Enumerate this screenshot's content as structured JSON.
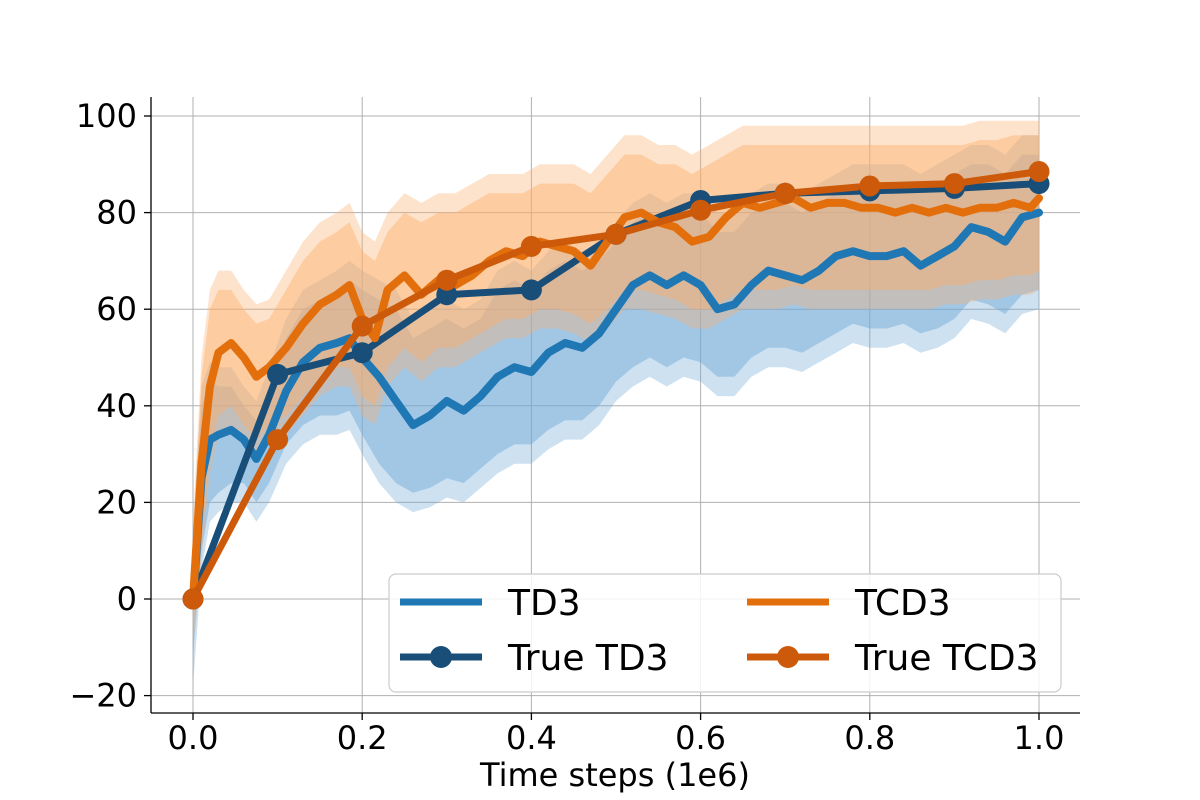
{
  "chart_data": {
    "type": "line",
    "title": "",
    "xlabel": "Time steps (1e6)",
    "ylabel": "",
    "xlim": [
      -0.05,
      1.05
    ],
    "ylim": [
      -23,
      104
    ],
    "x_ticks": [
      0.0,
      0.2,
      0.4,
      0.6,
      0.8,
      1.0
    ],
    "x_tick_labels": [
      "0.0",
      "0.2",
      "0.4",
      "0.6",
      "0.8",
      "1.0"
    ],
    "y_ticks": [
      -20,
      0,
      20,
      40,
      60,
      80,
      100
    ],
    "y_tick_labels": [
      "−20",
      "0",
      "20",
      "40",
      "60",
      "80",
      "100"
    ],
    "grid": true,
    "legend_position": "lower-right",
    "colors": {
      "td3": "#1f77b4",
      "true_td3": "#184e78",
      "tcd3": "#e36f0c",
      "true_tcd3": "#cc5a0a",
      "td3_band": "#6fa8d6",
      "tcd3_band": "#fdb06d"
    },
    "series": [
      {
        "name": "TD3",
        "style": "line",
        "x": [
          0.0,
          0.01,
          0.02,
          0.03,
          0.045,
          0.06,
          0.075,
          0.09,
          0.11,
          0.13,
          0.15,
          0.17,
          0.185,
          0.2,
          0.22,
          0.24,
          0.26,
          0.28,
          0.3,
          0.32,
          0.34,
          0.36,
          0.38,
          0.4,
          0.42,
          0.44,
          0.46,
          0.48,
          0.5,
          0.52,
          0.54,
          0.56,
          0.58,
          0.6,
          0.62,
          0.64,
          0.66,
          0.68,
          0.7,
          0.72,
          0.74,
          0.76,
          0.78,
          0.8,
          0.82,
          0.84,
          0.86,
          0.88,
          0.9,
          0.92,
          0.94,
          0.96,
          0.98,
          1.0
        ],
        "y": [
          -1,
          25,
          33,
          34,
          35,
          33,
          29,
          34,
          43,
          49,
          52,
          53,
          54,
          50,
          46,
          41,
          36,
          38,
          41,
          39,
          42,
          46,
          48,
          47,
          51,
          53,
          52,
          55,
          60,
          65,
          67,
          65,
          67,
          65,
          60,
          61,
          65,
          68,
          67,
          66,
          68,
          71,
          72,
          71,
          71,
          72,
          69,
          71,
          73,
          77,
          76,
          74,
          79,
          80
        ],
        "band_inner": [
          [
            -12,
            10
          ],
          [
            10,
            40
          ],
          [
            20,
            45
          ],
          [
            22,
            44
          ],
          [
            24,
            44
          ],
          [
            24,
            40
          ],
          [
            20,
            37
          ],
          [
            24,
            44
          ],
          [
            32,
            54
          ],
          [
            36,
            60
          ],
          [
            38,
            62
          ],
          [
            38,
            64
          ],
          [
            39,
            66
          ],
          [
            34,
            64
          ],
          [
            28,
            62
          ],
          [
            24,
            60
          ],
          [
            22,
            54
          ],
          [
            23,
            56
          ],
          [
            25,
            58
          ],
          [
            24,
            56
          ],
          [
            27,
            58
          ],
          [
            30,
            64
          ],
          [
            32,
            66
          ],
          [
            32,
            64
          ],
          [
            35,
            68
          ],
          [
            37,
            70
          ],
          [
            37,
            68
          ],
          [
            40,
            70
          ],
          [
            45,
            74
          ],
          [
            48,
            78
          ],
          [
            50,
            80
          ],
          [
            48,
            78
          ],
          [
            50,
            80
          ],
          [
            49,
            80
          ],
          [
            46,
            76
          ],
          [
            46,
            76
          ],
          [
            50,
            80
          ],
          [
            52,
            82
          ],
          [
            52,
            82
          ],
          [
            51,
            80
          ],
          [
            53,
            82
          ],
          [
            55,
            84
          ],
          [
            57,
            86
          ],
          [
            56,
            86
          ],
          [
            56,
            86
          ],
          [
            57,
            86
          ],
          [
            55,
            84
          ],
          [
            56,
            86
          ],
          [
            58,
            88
          ],
          [
            62,
            90
          ],
          [
            61,
            90
          ],
          [
            59,
            88
          ],
          [
            63,
            92
          ],
          [
            64,
            92
          ]
        ],
        "band_outer": [
          [
            -18,
            14
          ],
          [
            6,
            44
          ],
          [
            16,
            49
          ],
          [
            18,
            48
          ],
          [
            20,
            48
          ],
          [
            20,
            44
          ],
          [
            16,
            41
          ],
          [
            20,
            48
          ],
          [
            28,
            58
          ],
          [
            32,
            64
          ],
          [
            34,
            66
          ],
          [
            34,
            68
          ],
          [
            35,
            70
          ],
          [
            30,
            68
          ],
          [
            24,
            66
          ],
          [
            20,
            64
          ],
          [
            18,
            58
          ],
          [
            19,
            60
          ],
          [
            21,
            62
          ],
          [
            20,
            60
          ],
          [
            23,
            62
          ],
          [
            26,
            68
          ],
          [
            28,
            70
          ],
          [
            28,
            68
          ],
          [
            31,
            72
          ],
          [
            33,
            74
          ],
          [
            33,
            72
          ],
          [
            36,
            74
          ],
          [
            41,
            78
          ],
          [
            44,
            82
          ],
          [
            46,
            84
          ],
          [
            44,
            82
          ],
          [
            46,
            84
          ],
          [
            45,
            84
          ],
          [
            42,
            80
          ],
          [
            42,
            80
          ],
          [
            46,
            84
          ],
          [
            48,
            86
          ],
          [
            48,
            86
          ],
          [
            47,
            84
          ],
          [
            49,
            86
          ],
          [
            51,
            88
          ],
          [
            53,
            90
          ],
          [
            52,
            90
          ],
          [
            52,
            90
          ],
          [
            53,
            90
          ],
          [
            51,
            88
          ],
          [
            52,
            90
          ],
          [
            54,
            92
          ],
          [
            58,
            94
          ],
          [
            57,
            94
          ],
          [
            55,
            92
          ],
          [
            59,
            96
          ],
          [
            60,
            96
          ]
        ]
      },
      {
        "name": "TCD3",
        "style": "line",
        "x": [
          0.0,
          0.01,
          0.02,
          0.03,
          0.045,
          0.06,
          0.075,
          0.09,
          0.11,
          0.13,
          0.15,
          0.17,
          0.185,
          0.2,
          0.215,
          0.23,
          0.25,
          0.27,
          0.29,
          0.31,
          0.33,
          0.35,
          0.37,
          0.39,
          0.41,
          0.43,
          0.45,
          0.47,
          0.49,
          0.51,
          0.53,
          0.55,
          0.57,
          0.59,
          0.61,
          0.63,
          0.65,
          0.67,
          0.69,
          0.71,
          0.73,
          0.75,
          0.77,
          0.79,
          0.81,
          0.83,
          0.85,
          0.87,
          0.89,
          0.91,
          0.93,
          0.95,
          0.97,
          0.99,
          1.0
        ],
        "y": [
          0,
          28,
          44,
          51,
          53,
          50,
          46,
          48,
          52,
          57,
          61,
          63,
          65,
          58,
          54,
          64,
          67,
          63,
          66,
          65,
          67,
          70,
          72,
          71,
          74,
          73,
          72,
          69,
          74,
          79,
          80,
          78,
          77,
          74,
          75,
          79,
          82,
          81,
          82,
          83,
          81,
          82,
          82,
          81,
          81,
          80,
          81,
          80,
          81,
          80,
          81,
          81,
          82,
          81,
          83
        ],
        "band_inner": [
          [
            -6,
            12
          ],
          [
            12,
            46
          ],
          [
            30,
            60
          ],
          [
            38,
            64
          ],
          [
            40,
            64
          ],
          [
            36,
            60
          ],
          [
            33,
            57
          ],
          [
            36,
            58
          ],
          [
            38,
            64
          ],
          [
            42,
            70
          ],
          [
            46,
            74
          ],
          [
            48,
            76
          ],
          [
            48,
            78
          ],
          [
            42,
            72
          ],
          [
            40,
            70
          ],
          [
            48,
            76
          ],
          [
            52,
            80
          ],
          [
            49,
            78
          ],
          [
            52,
            80
          ],
          [
            52,
            80
          ],
          [
            54,
            82
          ],
          [
            56,
            84
          ],
          [
            58,
            84
          ],
          [
            58,
            84
          ],
          [
            60,
            86
          ],
          [
            60,
            86
          ],
          [
            59,
            86
          ],
          [
            57,
            84
          ],
          [
            60,
            88
          ],
          [
            64,
            92
          ],
          [
            64,
            92
          ],
          [
            63,
            90
          ],
          [
            62,
            90
          ],
          [
            60,
            88
          ],
          [
            60,
            90
          ],
          [
            62,
            92
          ],
          [
            64,
            94
          ],
          [
            64,
            94
          ],
          [
            64,
            94
          ],
          [
            65,
            94
          ],
          [
            64,
            94
          ],
          [
            64,
            94
          ],
          [
            64,
            94
          ],
          [
            64,
            94
          ],
          [
            64,
            94
          ],
          [
            64,
            94
          ],
          [
            64,
            94
          ],
          [
            64,
            94
          ],
          [
            65,
            94
          ],
          [
            65,
            94
          ],
          [
            66,
            95
          ],
          [
            66,
            95
          ],
          [
            67,
            96
          ],
          [
            67,
            96
          ],
          [
            68,
            96
          ]
        ],
        "band_outer": [
          [
            -10,
            16
          ],
          [
            8,
            50
          ],
          [
            26,
            64
          ],
          [
            34,
            68
          ],
          [
            36,
            68
          ],
          [
            32,
            64
          ],
          [
            29,
            61
          ],
          [
            32,
            62
          ],
          [
            34,
            68
          ],
          [
            38,
            74
          ],
          [
            42,
            78
          ],
          [
            44,
            80
          ],
          [
            44,
            82
          ],
          [
            38,
            76
          ],
          [
            36,
            74
          ],
          [
            44,
            80
          ],
          [
            48,
            84
          ],
          [
            45,
            82
          ],
          [
            48,
            84
          ],
          [
            48,
            84
          ],
          [
            50,
            86
          ],
          [
            52,
            88
          ],
          [
            54,
            88
          ],
          [
            54,
            88
          ],
          [
            56,
            90
          ],
          [
            56,
            90
          ],
          [
            55,
            90
          ],
          [
            53,
            88
          ],
          [
            56,
            92
          ],
          [
            60,
            96
          ],
          [
            60,
            96
          ],
          [
            59,
            94
          ],
          [
            58,
            94
          ],
          [
            56,
            92
          ],
          [
            56,
            94
          ],
          [
            58,
            96
          ],
          [
            60,
            98
          ],
          [
            60,
            98
          ],
          [
            60,
            98
          ],
          [
            61,
            98
          ],
          [
            60,
            98
          ],
          [
            60,
            98
          ],
          [
            60,
            98
          ],
          [
            60,
            98
          ],
          [
            60,
            98
          ],
          [
            60,
            98
          ],
          [
            60,
            98
          ],
          [
            60,
            98
          ],
          [
            61,
            98
          ],
          [
            61,
            98
          ],
          [
            62,
            99
          ],
          [
            62,
            99
          ],
          [
            63,
            99
          ],
          [
            63,
            99
          ],
          [
            64,
            99
          ]
        ]
      },
      {
        "name": "True TD3",
        "style": "line-marker",
        "x": [
          0.0,
          0.1,
          0.2,
          0.3,
          0.4,
          0.5,
          0.6,
          0.7,
          0.8,
          0.9,
          1.0
        ],
        "y": [
          0,
          46.5,
          51,
          63,
          64,
          75.5,
          82.5,
          84,
          84.5,
          85,
          86
        ]
      },
      {
        "name": "True TCD3",
        "style": "line-marker",
        "x": [
          0.0,
          0.1,
          0.2,
          0.3,
          0.4,
          0.5,
          0.6,
          0.7,
          0.8,
          0.9,
          1.0
        ],
        "y": [
          0,
          33,
          56.5,
          66,
          73,
          75.5,
          80.5,
          84,
          85.5,
          86,
          88.5
        ]
      }
    ]
  },
  "legend": {
    "items": [
      "TD3",
      "TCD3",
      "True TD3",
      "True TCD3"
    ]
  }
}
